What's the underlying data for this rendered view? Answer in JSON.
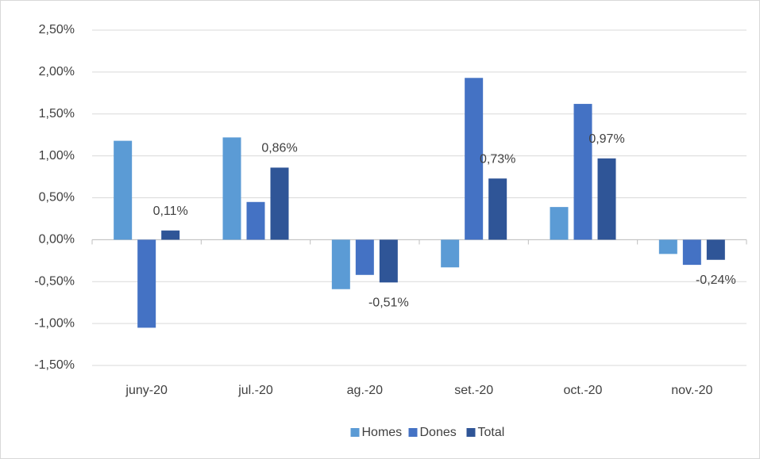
{
  "chart_data": {
    "type": "bar",
    "categories": [
      "juny-20",
      "jul.-20",
      "ag.-20",
      "set.-20",
      "oct.-20",
      "nov.-20"
    ],
    "series": [
      {
        "name": "Homes",
        "color": "#5b9bd5",
        "values": [
          1.18,
          1.22,
          -0.59,
          -0.33,
          0.39,
          -0.17
        ]
      },
      {
        "name": "Dones",
        "color": "#4472c4",
        "values": [
          -1.05,
          0.45,
          -0.42,
          1.93,
          1.62,
          -0.3
        ]
      },
      {
        "name": "Total",
        "color": "#2f5597",
        "values": [
          0.11,
          0.86,
          -0.51,
          0.73,
          0.97,
          -0.24
        ],
        "value_labels": [
          "0,11%",
          "0,86%",
          "-0,51%",
          "0,73%",
          "0,97%",
          "-0,24%"
        ]
      }
    ],
    "ylim": [
      -1.5,
      2.5
    ],
    "yticks": [
      {
        "value": -1.5,
        "label": "-1,50%"
      },
      {
        "value": -1.0,
        "label": "-1,00%"
      },
      {
        "value": -0.5,
        "label": "-0,50%"
      },
      {
        "value": 0,
        "label": "0,00%"
      },
      {
        "value": 0.5,
        "label": "0,50%"
      },
      {
        "value": 1.0,
        "label": "1,00%"
      },
      {
        "value": 1.5,
        "label": "1,50%"
      },
      {
        "value": 2.0,
        "label": "2,00%"
      },
      {
        "value": 2.5,
        "label": "2,50%"
      }
    ],
    "grid": true,
    "legend": "bottom"
  }
}
